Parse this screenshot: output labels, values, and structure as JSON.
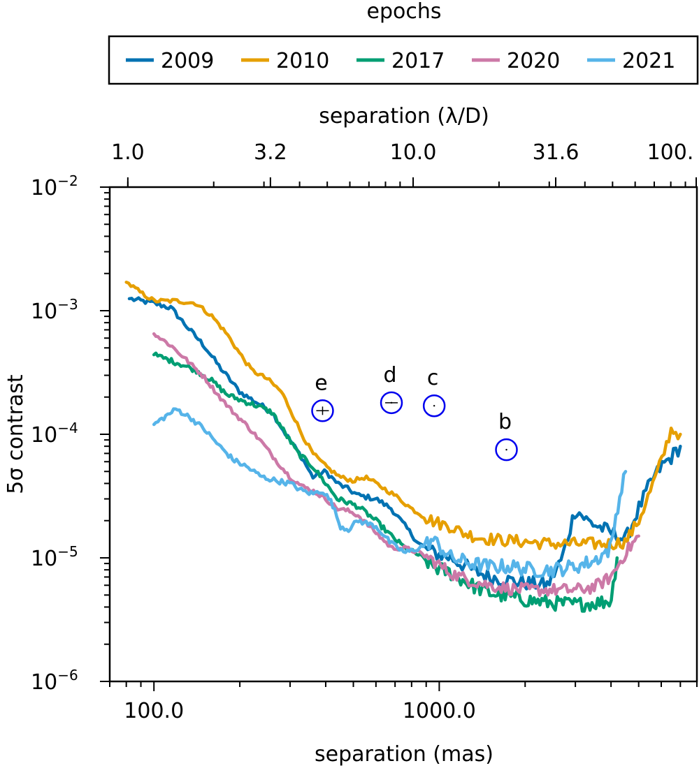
{
  "chart_data": {
    "type": "line",
    "title": "",
    "xlabel": "separation (mas)",
    "ylabel": "5σ contrast",
    "xscale": "log",
    "yscale": "log",
    "xlim": [
      70,
      8000
    ],
    "ylim": [
      1e-06,
      0.01
    ],
    "x_ticklabels": [
      {
        "value": 100,
        "label": "100.0"
      },
      {
        "value": 1000,
        "label": "1000.0"
      }
    ],
    "y_ticklabels": [
      {
        "value": 1e-06,
        "base": "10",
        "exp": "−6"
      },
      {
        "value": 1e-05,
        "base": "10",
        "exp": "−5"
      },
      {
        "value": 0.0001,
        "base": "10",
        "exp": "−4"
      },
      {
        "value": 0.001,
        "base": "10",
        "exp": "−3"
      },
      {
        "value": 0.01,
        "base": "10",
        "exp": "−2"
      }
    ],
    "top_axis": {
      "label": "separation (λ/D)",
      "ticklabels": [
        {
          "x_mas": 81,
          "label": "1.0"
        },
        {
          "x_mas": 256,
          "label": "3.2"
        },
        {
          "x_mas": 810,
          "label": "10.0"
        },
        {
          "x_mas": 2560,
          "label": "31.6"
        },
        {
          "x_mas": 8100,
          "label": "100."
        }
      ]
    },
    "legend": {
      "title": "epochs",
      "placement": "above plot",
      "entries": [
        "2009",
        "2010",
        "2017",
        "2020",
        "2021"
      ]
    },
    "series": [
      {
        "name": "2009",
        "color": "#0072B2",
        "jitter": 0.06,
        "points": [
          [
            82,
            0.00125
          ],
          [
            100,
            0.00115
          ],
          [
            115,
            0.00105
          ],
          [
            130,
            0.00075
          ],
          [
            150,
            0.00052
          ],
          [
            170,
            0.00035
          ],
          [
            200,
            0.00022
          ],
          [
            230,
            0.00018
          ],
          [
            260,
            0.00015
          ],
          [
            290,
            0.0001
          ],
          [
            330,
            6.5e-05
          ],
          [
            360,
            4.5e-05
          ],
          [
            400,
            5e-05
          ],
          [
            440,
            4e-05
          ],
          [
            480,
            3.6e-05
          ],
          [
            520,
            3.2e-05
          ],
          [
            600,
            3e-05
          ],
          [
            680,
            2.5e-05
          ],
          [
            760,
            1.8e-05
          ],
          [
            850,
            1.3e-05
          ],
          [
            950,
            1.1e-05
          ],
          [
            1100,
            1e-05
          ],
          [
            1300,
            8e-06
          ],
          [
            1500,
            7e-06
          ],
          [
            1800,
            6.5e-06
          ],
          [
            2100,
            6.2e-06
          ],
          [
            2400,
            6e-06
          ],
          [
            2700,
            1e-05
          ],
          [
            3000,
            2.5e-05
          ],
          [
            3300,
            2e-05
          ],
          [
            3600,
            1.8e-05
          ],
          [
            4000,
            1.6e-05
          ],
          [
            4500,
            1.4e-05
          ],
          [
            5000,
            2.5e-05
          ],
          [
            5500,
            4e-05
          ],
          [
            6000,
            5.5e-05
          ],
          [
            6500,
            6.5e-05
          ],
          [
            7000,
            8e-05
          ]
        ]
      },
      {
        "name": "2010",
        "color": "#E69F00",
        "jitter": 0.05,
        "points": [
          [
            80,
            0.0017
          ],
          [
            90,
            0.0014
          ],
          [
            100,
            0.0012
          ],
          [
            120,
            0.0012
          ],
          [
            140,
            0.00115
          ],
          [
            160,
            0.0009
          ],
          [
            180,
            0.00065
          ],
          [
            200,
            0.00045
          ],
          [
            220,
            0.00033
          ],
          [
            250,
            0.00028
          ],
          [
            280,
            0.00022
          ],
          [
            300,
            0.00016
          ],
          [
            330,
            0.0001
          ],
          [
            360,
            7e-05
          ],
          [
            400,
            5.5e-05
          ],
          [
            450,
            4.5e-05
          ],
          [
            500,
            4.2e-05
          ],
          [
            550,
            4.5e-05
          ],
          [
            600,
            4e-05
          ],
          [
            700,
            3.2e-05
          ],
          [
            800,
            2.5e-05
          ],
          [
            900,
            2.1e-05
          ],
          [
            1000,
            1.9e-05
          ],
          [
            1100,
            1.8e-05
          ],
          [
            1200,
            1.6e-05
          ],
          [
            1400,
            1.45e-05
          ],
          [
            1600,
            1.4e-05
          ],
          [
            2000,
            1.35e-05
          ],
          [
            2500,
            1.3e-05
          ],
          [
            3000,
            1.3e-05
          ],
          [
            3500,
            1.3e-05
          ],
          [
            4000,
            1.3e-05
          ],
          [
            4500,
            1.35e-05
          ],
          [
            5000,
            2e-05
          ],
          [
            5500,
            3.5e-05
          ],
          [
            6000,
            6e-05
          ],
          [
            6500,
            0.00011
          ],
          [
            7000,
            0.0001
          ]
        ]
      },
      {
        "name": "2017",
        "color": "#009E73",
        "jitter": 0.06,
        "points": [
          [
            100,
            0.00044
          ],
          [
            120,
            0.00038
          ],
          [
            140,
            0.00033
          ],
          [
            160,
            0.00027
          ],
          [
            180,
            0.00021
          ],
          [
            200,
            0.00019
          ],
          [
            230,
            0.00017
          ],
          [
            260,
            0.00015
          ],
          [
            290,
            0.0001
          ],
          [
            320,
            7e-05
          ],
          [
            360,
            5.5e-05
          ],
          [
            400,
            4e-05
          ],
          [
            440,
            3e-05
          ],
          [
            480,
            2.8e-05
          ],
          [
            520,
            2.6e-05
          ],
          [
            600,
            2e-05
          ],
          [
            680,
            1.5e-05
          ],
          [
            760,
            1.2e-05
          ],
          [
            850,
            1.05e-05
          ],
          [
            950,
            8.5e-06
          ],
          [
            1100,
            7.5e-06
          ],
          [
            1300,
            6e-06
          ],
          [
            1500,
            5.2e-06
          ],
          [
            1800,
            4.8e-06
          ],
          [
            2100,
            4.5e-06
          ],
          [
            2500,
            4.3e-06
          ],
          [
            3000,
            4.2e-06
          ],
          [
            3500,
            4.3e-06
          ],
          [
            4000,
            4.5e-06
          ],
          [
            4200,
            1e-05
          ]
        ]
      },
      {
        "name": "2020",
        "color": "#CC79A7",
        "jitter": 0.05,
        "points": [
          [
            100,
            0.00065
          ],
          [
            115,
            0.00052
          ],
          [
            130,
            0.0004
          ],
          [
            150,
            0.00029
          ],
          [
            170,
            0.0002
          ],
          [
            190,
            0.00015
          ],
          [
            210,
            0.00012
          ],
          [
            240,
            8.5e-05
          ],
          [
            270,
            6e-05
          ],
          [
            300,
            4.5e-05
          ],
          [
            330,
            3.8e-05
          ],
          [
            360,
            3.5e-05
          ],
          [
            400,
            3e-05
          ],
          [
            440,
            2.5e-05
          ],
          [
            480,
            2.4e-05
          ],
          [
            520,
            2.2e-05
          ],
          [
            600,
            1.6e-05
          ],
          [
            680,
            1.2e-05
          ],
          [
            760,
            1.2e-05
          ],
          [
            850,
            1.1e-05
          ],
          [
            950,
            9.5e-06
          ],
          [
            1100,
            7.5e-06
          ],
          [
            1300,
            6.5e-06
          ],
          [
            1500,
            6e-06
          ],
          [
            1800,
            5.6e-06
          ],
          [
            2100,
            5.5e-06
          ],
          [
            2500,
            5.5e-06
          ],
          [
            3000,
            5.5e-06
          ],
          [
            3500,
            5.8e-06
          ],
          [
            4000,
            7e-06
          ],
          [
            4500,
            1.1e-05
          ],
          [
            5000,
            1.5e-05
          ]
        ]
      },
      {
        "name": "2021",
        "color": "#56B4E9",
        "jitter": 0.06,
        "points": [
          [
            100,
            0.00012
          ],
          [
            110,
            0.00014
          ],
          [
            120,
            0.00016
          ],
          [
            135,
            0.000135
          ],
          [
            150,
            0.00011
          ],
          [
            170,
            8e-05
          ],
          [
            190,
            6.2e-05
          ],
          [
            210,
            5.5e-05
          ],
          [
            240,
            4.5e-05
          ],
          [
            270,
            4.2e-05
          ],
          [
            300,
            4e-05
          ],
          [
            330,
            3.5e-05
          ],
          [
            360,
            3.3e-05
          ],
          [
            390,
            3.5e-05
          ],
          [
            420,
            2.8e-05
          ],
          [
            450,
            1.8e-05
          ],
          [
            480,
            1.7e-05
          ],
          [
            520,
            2e-05
          ],
          [
            600,
            1.8e-05
          ],
          [
            680,
            1.3e-05
          ],
          [
            760,
            1.1e-05
          ],
          [
            850,
            1.2e-05
          ],
          [
            950,
            1.4e-05
          ],
          [
            1100,
            1e-05
          ],
          [
            1300,
            9e-06
          ],
          [
            1500,
            8.5e-06
          ],
          [
            1800,
            8.5e-06
          ],
          [
            2100,
            8e-06
          ],
          [
            2500,
            8e-06
          ],
          [
            3000,
            8.5e-06
          ],
          [
            3500,
            9.5e-06
          ],
          [
            4000,
            1.2e-05
          ],
          [
            4200,
            2.5e-05
          ],
          [
            4500,
            5e-05
          ]
        ]
      }
    ],
    "annotations": [
      {
        "label": "e",
        "x": 390,
        "y": 0.000155,
        "err": "horizontal+vertical"
      },
      {
        "label": "d",
        "x": 680,
        "y": 0.00018,
        "err": "horizontal"
      },
      {
        "label": "c",
        "x": 960,
        "y": 0.00017,
        "err": "none"
      },
      {
        "label": "b",
        "x": 1720,
        "y": 7.5e-05,
        "err": "none"
      }
    ]
  }
}
